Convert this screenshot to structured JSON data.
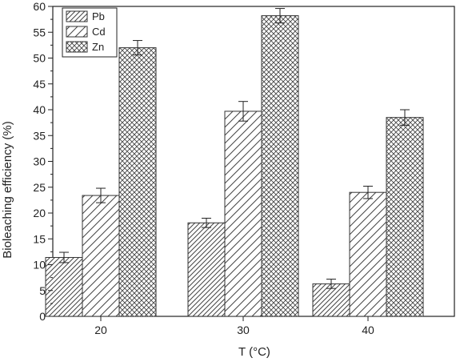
{
  "chart_data": {
    "type": "bar",
    "title": "",
    "xlabel": "T (°C)",
    "ylabel": "Bioleaching efficiency (%)",
    "ylim": [
      0,
      60
    ],
    "yticks": [
      0,
      5,
      10,
      15,
      20,
      25,
      30,
      35,
      40,
      45,
      50,
      55,
      60
    ],
    "categories": [
      "20",
      "30",
      "40"
    ],
    "series": [
      {
        "name": "Pb",
        "pattern": "hatch-dense",
        "values": [
          11.4,
          18.1,
          6.3
        ],
        "errors": [
          1.0,
          0.9,
          0.9
        ]
      },
      {
        "name": "Cd",
        "pattern": "hatch-wide",
        "values": [
          23.4,
          39.7,
          24.0
        ],
        "errors": [
          1.4,
          1.9,
          1.2
        ]
      },
      {
        "name": "Zn",
        "pattern": "crosshatch",
        "values": [
          52.0,
          58.2,
          38.5
        ],
        "errors": [
          1.4,
          1.4,
          1.5
        ]
      }
    ],
    "legend_position": "top-left",
    "grid": false,
    "colors": {
      "bar_edge": "#333333",
      "hatch": "#444444",
      "axis": "#222222",
      "fill": "#ffffff"
    }
  }
}
